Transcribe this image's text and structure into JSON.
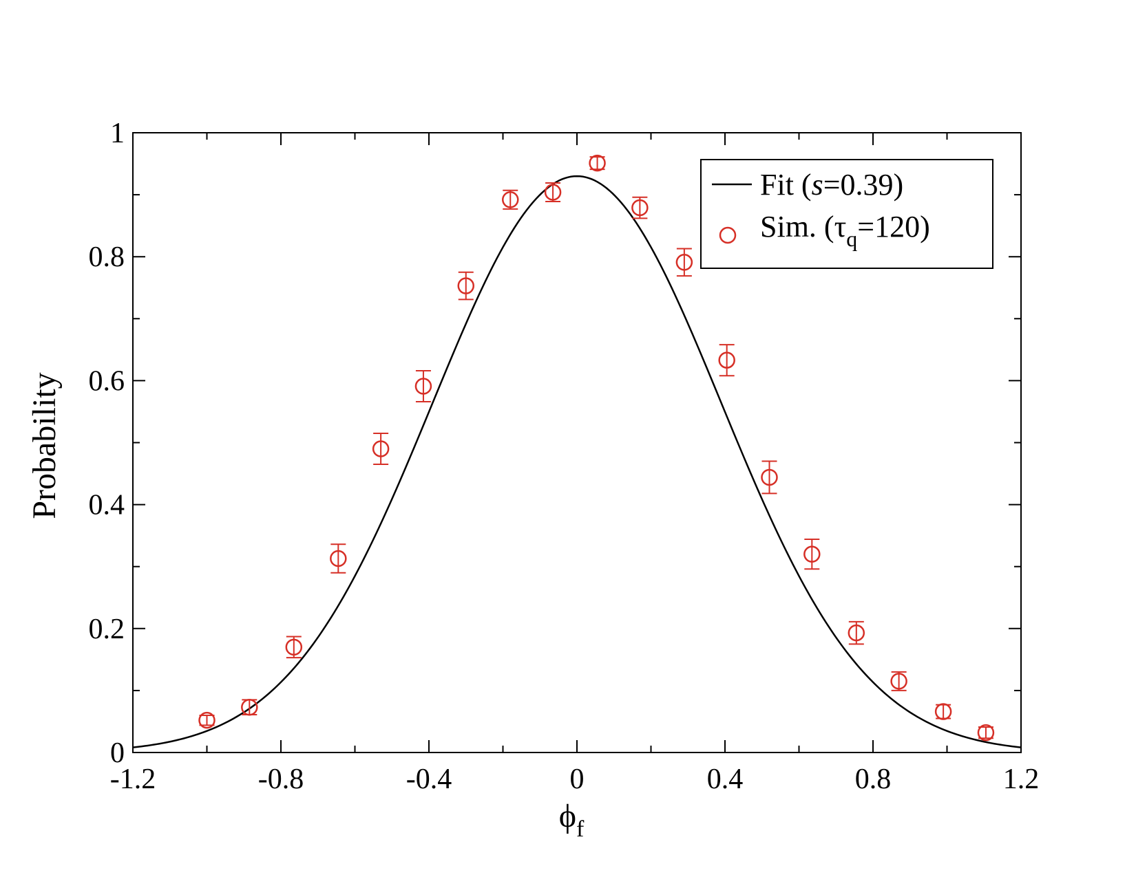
{
  "chart_data": {
    "type": "line+scatter",
    "xlabel": "ϕ",
    "xlabel_sub": "f",
    "ylabel": "Probability",
    "xlim": [
      -1.2,
      1.2
    ],
    "ylim": [
      0,
      1
    ],
    "xticks": [
      -1.2,
      -0.8,
      -0.4,
      0,
      0.4,
      0.8,
      1.2
    ],
    "xtick_labels": [
      "-1.2",
      "-0.8",
      "-0.4",
      "0",
      "0.4",
      "0.8",
      "1.2"
    ],
    "yticks": [
      0,
      0.2,
      0.4,
      0.6,
      0.8,
      1
    ],
    "ytick_labels": [
      "0",
      "0.2",
      "0.4",
      "0.6",
      "0.8",
      "1"
    ],
    "legend_position": "top-right",
    "fit": {
      "name": "Fit (s=0.39)",
      "label_prefix": "Fit (",
      "label_var": "s",
      "label_suffix": "=0.39)",
      "amplitude": 0.93,
      "sigma": 0.39,
      "color": "#000000"
    },
    "sim": {
      "name": "Sim. (τq=120)",
      "label_prefix": "Sim. (τ",
      "label_sub": "q",
      "label_suffix": "=120)",
      "color": "#d62f26",
      "x": [
        -1.0,
        -0.885,
        -0.765,
        -0.645,
        -0.53,
        -0.415,
        -0.3,
        -0.18,
        -0.065,
        0.055,
        0.17,
        0.29,
        0.405,
        0.52,
        0.635,
        0.755,
        0.87,
        0.99,
        1.105
      ],
      "y": [
        0.052,
        0.073,
        0.17,
        0.313,
        0.49,
        0.591,
        0.753,
        0.892,
        0.904,
        0.951,
        0.879,
        0.791,
        0.633,
        0.444,
        0.32,
        0.193,
        0.115,
        0.066,
        0.032
      ],
      "err": [
        0.008,
        0.012,
        0.017,
        0.023,
        0.025,
        0.025,
        0.022,
        0.015,
        0.015,
        0.01,
        0.017,
        0.022,
        0.025,
        0.026,
        0.024,
        0.018,
        0.015,
        0.011,
        0.009
      ]
    }
  }
}
